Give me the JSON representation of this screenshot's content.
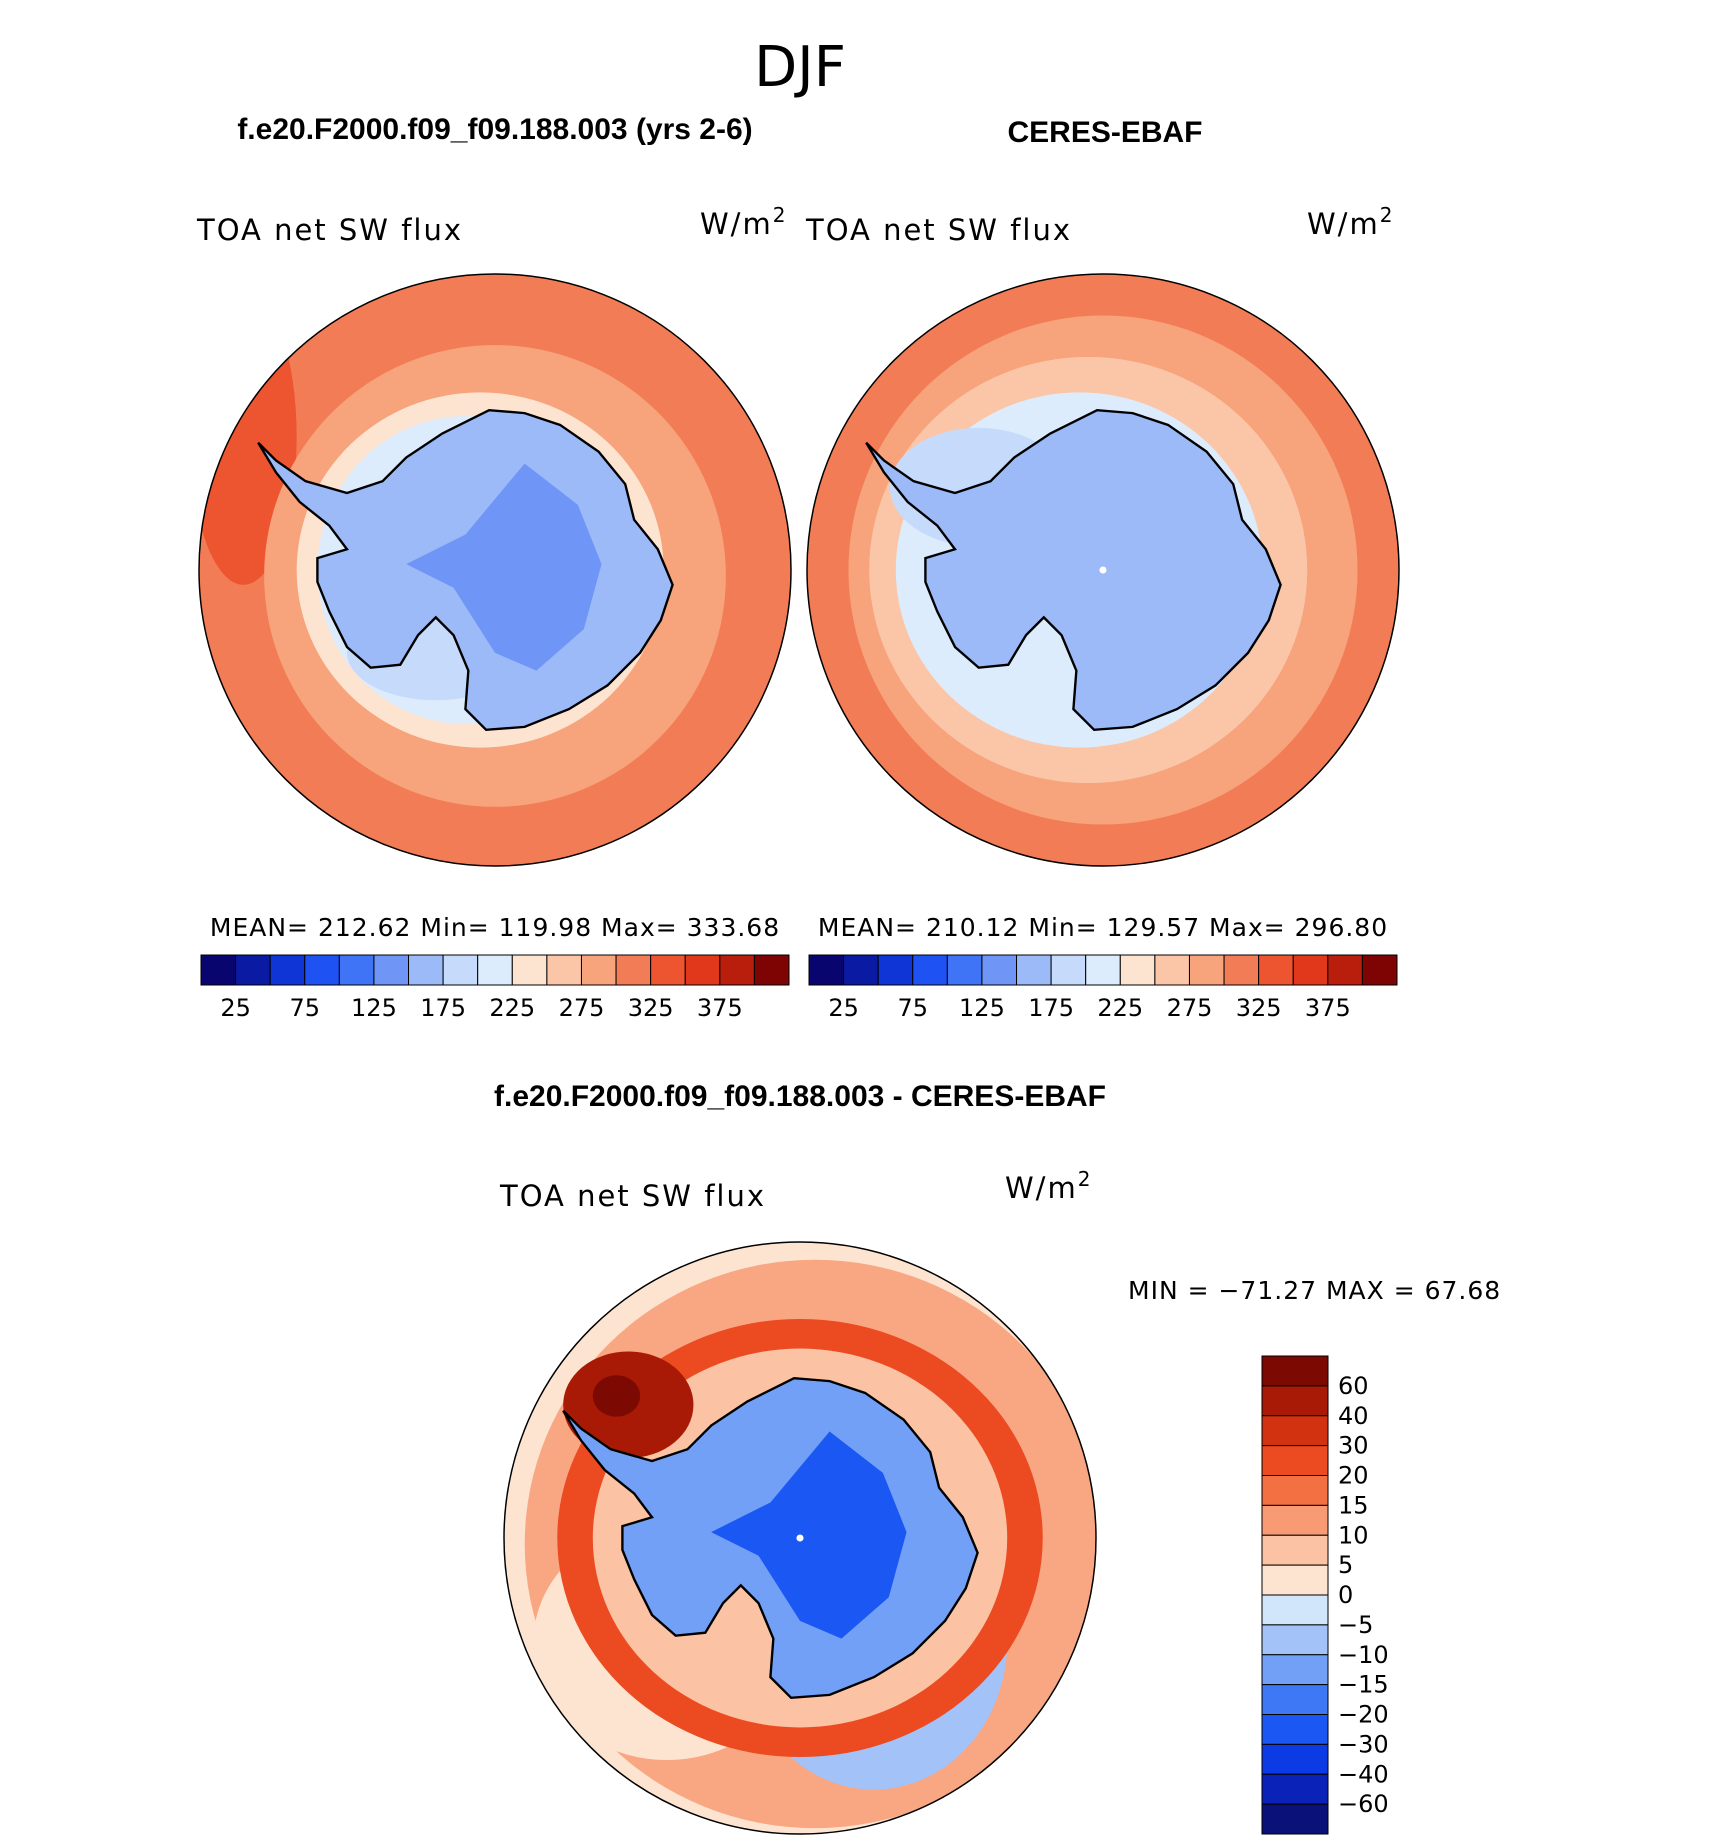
{
  "figure": {
    "season": "DJF",
    "panel_titles": {
      "model": "f.e20.F2000.f09_f09.188.003 (yrs 2-6)",
      "obs": "CERES-EBAF",
      "diff": "f.e20.F2000.f09_f09.188.003 - CERES-EBAF"
    }
  },
  "colors": {
    "abs_levels": [
      "#08066e",
      "#0a1aa3",
      "#0f35d6",
      "#1f52f2",
      "#3f74f6",
      "#6f96f7",
      "#9dbaf8",
      "#c6dbfb",
      "#ddecfc",
      "#fde4d0",
      "#fbc6a8",
      "#f7a37c",
      "#f27c55",
      "#ec5530",
      "#e1371a",
      "#b91d0c",
      "#7e0303"
    ],
    "diff_levels": [
      "#0a127a",
      "#0b22b8",
      "#0c3be6",
      "#1b57f3",
      "#3e78f5",
      "#72a0f6",
      "#a3c2f8",
      "#d2e6fb",
      "#fde4d0",
      "#fbc2a3",
      "#f89b74",
      "#f37043",
      "#ec4a20",
      "#d2320f",
      "#a81a06",
      "#7c0a03"
    ],
    "coast": "#000000"
  },
  "chart_data": [
    {
      "id": "model",
      "type": "heatmap",
      "projection": "south-polar-stereographic",
      "title": "f.e20.F2000.f09_f09.188.003 (yrs 2-6)",
      "variable": "TOA net SW flux",
      "units": "W/m2",
      "units_text": "W/m",
      "units_sup": "2",
      "stats": {
        "mean_label": "MEAN=",
        "mean": "212.62",
        "min_label": "Min=",
        "min": "119.98",
        "max_label": "Max=",
        "max": "333.68"
      },
      "stats_text": "MEAN= 212.62   Min= 119.98   Max= 333.68",
      "colorbar_labels": [
        "25",
        "75",
        "125",
        "175",
        "225",
        "275",
        "325",
        "375"
      ],
      "value_by_zone": {
        "continent_interior": 140,
        "continent": 165,
        "ice_edge": 190,
        "coast_ring": 220,
        "southern_ocean": 275,
        "midlatitude_ocean": 300
      }
    },
    {
      "id": "obs",
      "type": "heatmap",
      "projection": "south-polar-stereographic",
      "title": "CERES-EBAF",
      "variable": "TOA net SW flux",
      "units": "W/m2",
      "units_text": "W/m",
      "units_sup": "2",
      "stats": {
        "mean_label": "MEAN=",
        "mean": "210.12",
        "min_label": "Min=",
        "min": "129.57",
        "max_label": "Max=",
        "max": "296.80"
      },
      "stats_text": "MEAN= 210.12   Min= 129.57   Max= 296.80",
      "colorbar_labels": [
        "25",
        "75",
        "125",
        "175",
        "225",
        "275",
        "325",
        "375"
      ],
      "value_by_zone": {
        "continent": 160,
        "ice_edge": 180,
        "coast_ring": 220,
        "southern_ocean": 250,
        "midlatitude_ocean": 275,
        "outer_ring": 300
      }
    },
    {
      "id": "diff",
      "type": "heatmap",
      "projection": "south-polar-stereographic",
      "title": "f.e20.F2000.f09_f09.188.003 - CERES-EBAF",
      "variable": "TOA net SW flux",
      "units": "W/m2",
      "units_text": "W/m",
      "units_sup": "2",
      "min": -71.27,
      "max": 67.68,
      "range_text": "MIN = −71.27 MAX =   67.68",
      "colorbar_labels": [
        "60",
        "40",
        "30",
        "20",
        "15",
        "10",
        "5",
        "0",
        "−5",
        "−10",
        "−15",
        "−20",
        "−30",
        "−40",
        "−60"
      ],
      "value_by_zone": {
        "continent_interior": -25,
        "continent": -12,
        "coastal_ring": 20,
        "ocean": 0,
        "peninsula_max": 60
      }
    }
  ]
}
